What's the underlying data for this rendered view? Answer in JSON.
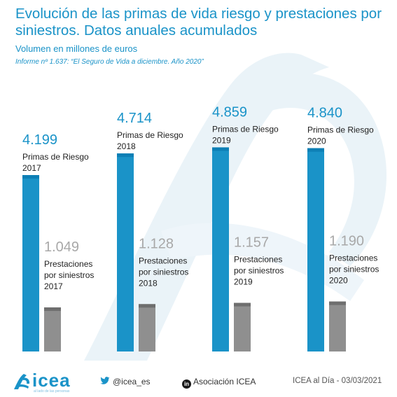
{
  "header": {
    "title": "Evolución de las primas de vida riesgo y prestaciones por siniestros. Datos anuales acumulados",
    "subtitle": "Volumen en millones de euros",
    "source": "Informe nº 1.637: “El Seguro de Vida a diciembre. Año 2020”"
  },
  "chart_data": {
    "type": "bar",
    "title": "Evolución de las primas de vida riesgo y prestaciones por siniestros. Datos anuales acumulados",
    "subtitle": "Volumen en millones de euros",
    "categories": [
      "2017",
      "2018",
      "2019",
      "2020"
    ],
    "series": [
      {
        "name": "Primas de Riesgo",
        "values": [
          4199,
          4714,
          4859,
          4840
        ],
        "value_labels": [
          "4.199",
          "4.714",
          "4.859",
          "4.840"
        ],
        "label_lines": [
          [
            "Primas de Riesgo",
            "2017"
          ],
          [
            "Primas de Riesgo",
            "2018"
          ],
          [
            "Primas de Riesgo",
            "2019"
          ],
          [
            "Primas de Riesgo",
            "2020"
          ]
        ],
        "color": "#1a93c8"
      },
      {
        "name": "Prestaciones por siniestros",
        "values": [
          1049,
          1128,
          1157,
          1190
        ],
        "value_labels": [
          "1.049",
          "1.128",
          "1.157",
          "1.190"
        ],
        "label_lines": [
          [
            "Prestaciones",
            "por siniestros",
            "2017"
          ],
          [
            "Prestaciones",
            "por siniestros",
            "2018"
          ],
          [
            "Prestaciones",
            "por siniestros",
            "2019"
          ],
          [
            "Prestaciones",
            "por siniestros",
            "2020"
          ]
        ],
        "color": "#8f8f8f"
      }
    ],
    "ylim": [
      0,
      5000
    ],
    "grid": false,
    "legend": "none"
  },
  "footer": {
    "logo_text": "icea",
    "logo_tagline": "al lado de las personas",
    "twitter": "@icea_es",
    "linkedin_badge": "in",
    "linkedin": "Asociación ICEA",
    "date": "ICEA al Día - 03/03/2021"
  },
  "colors": {
    "accent": "#1a93c8",
    "bar_primary_dark": "#0d7fb5",
    "bar_secondary": "#8f8f8f",
    "value_gray": "#a8a8a8",
    "watermark": "#eaf3f8"
  }
}
